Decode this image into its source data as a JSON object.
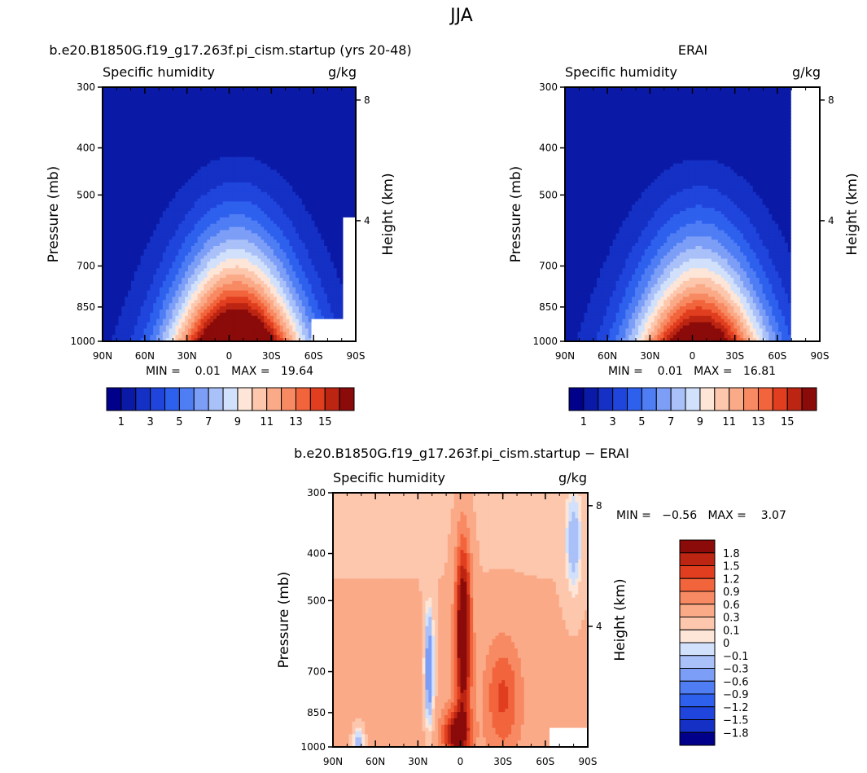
{
  "figure_title": "JJA",
  "chart_data": [
    {
      "type": "contour",
      "id": "model",
      "title": "b.e20.B1850G.f19_g17.263f.pi_cism.startup (yrs 20-48)",
      "subtitle_left": "Specific humidity",
      "subtitle_right": "g/kg",
      "xlabel": "",
      "ylabel": "Pressure (mb)",
      "y2label": "Height (km)",
      "x_ticks": [
        "90N",
        "60N",
        "30N",
        "0",
        "30S",
        "60S",
        "90S"
      ],
      "y_ticks": [
        "300",
        "400",
        "500",
        "700",
        "850",
        "1000"
      ],
      "y2_ticks": [
        "8",
        "4"
      ],
      "stats_text": "MIN =    0.01   MAX =   19.64",
      "min": 0.01,
      "max": 19.64,
      "peak": {
        "lat": -5,
        "pressure": 960,
        "value": 19.64
      },
      "contour_levels": [
        1,
        2,
        3,
        4,
        5,
        6,
        7,
        8,
        9,
        10,
        11,
        12,
        13,
        14,
        15
      ]
    },
    {
      "type": "contour",
      "id": "erai",
      "title": "ERAI",
      "subtitle_left": "Specific humidity",
      "subtitle_right": "g/kg",
      "xlabel": "",
      "ylabel": "Pressure (mb)",
      "y2label": "Height (km)",
      "x_ticks": [
        "90N",
        "60N",
        "30N",
        "0",
        "30S",
        "60S",
        "90S"
      ],
      "y_ticks": [
        "300",
        "400",
        "500",
        "700",
        "850",
        "1000"
      ],
      "y2_ticks": [
        "8",
        "4"
      ],
      "stats_text": "MIN =    0.01   MAX =   16.81",
      "min": 0.01,
      "max": 16.81,
      "peak": {
        "lat": -5,
        "pressure": 975,
        "value": 16.81
      },
      "contour_levels": [
        1,
        2,
        3,
        4,
        5,
        6,
        7,
        8,
        9,
        10,
        11,
        12,
        13,
        14,
        15
      ]
    },
    {
      "type": "contour",
      "id": "diff",
      "title": "b.e20.B1850G.f19_g17.263f.pi_cism.startup − ERAI",
      "subtitle_left": "Specific humidity",
      "subtitle_right": "g/kg",
      "xlabel": "",
      "ylabel": "Pressure (mb)",
      "y2label": "Height (km)",
      "x_ticks": [
        "90N",
        "60N",
        "30N",
        "0",
        "30S",
        "60S",
        "90S"
      ],
      "y_ticks": [
        "300",
        "400",
        "500",
        "700",
        "850",
        "1000"
      ],
      "y2_ticks": [
        "8",
        "4"
      ],
      "stats_text": "MIN =   −0.56   MAX =    3.07",
      "min": -0.56,
      "max": 3.07,
      "contour_levels": [
        -1.8,
        -1.5,
        -1.2,
        -0.9,
        -0.6,
        -0.3,
        -0.1,
        0,
        0.1,
        0.3,
        0.6,
        0.9,
        1.2,
        1.5,
        1.8
      ]
    }
  ],
  "colorbars": {
    "absolute": {
      "labels": [
        "1",
        "3",
        "5",
        "7",
        "9",
        "11",
        "13",
        "15"
      ],
      "colors": [
        "#00008b",
        "#0a1aa6",
        "#1530c4",
        "#1f45dc",
        "#2e60ee",
        "#4f7df4",
        "#7d9ef7",
        "#a9c0f9",
        "#d2e1fb",
        "#fde5d8",
        "#fdc7ad",
        "#fbaa88",
        "#f78a62",
        "#f2643c",
        "#e03e1e",
        "#bb2512",
        "#8b0a0a"
      ]
    },
    "difference": {
      "labels": [
        "1.8",
        "1.5",
        "1.2",
        "0.9",
        "0.6",
        "0.3",
        "0.1",
        "0",
        "−0.1",
        "−0.3",
        "−0.6",
        "−0.9",
        "−1.2",
        "−1.5",
        "−1.8"
      ],
      "colors": [
        "#8b0a0a",
        "#bb2512",
        "#e03e1e",
        "#f2643c",
        "#f78a62",
        "#fbaa88",
        "#fdc7ad",
        "#fde5d8",
        "#d2e1fb",
        "#a9c0f9",
        "#7d9ef7",
        "#4f7df4",
        "#2e60ee",
        "#1f45dc",
        "#1530c4",
        "#00008b"
      ]
    }
  }
}
